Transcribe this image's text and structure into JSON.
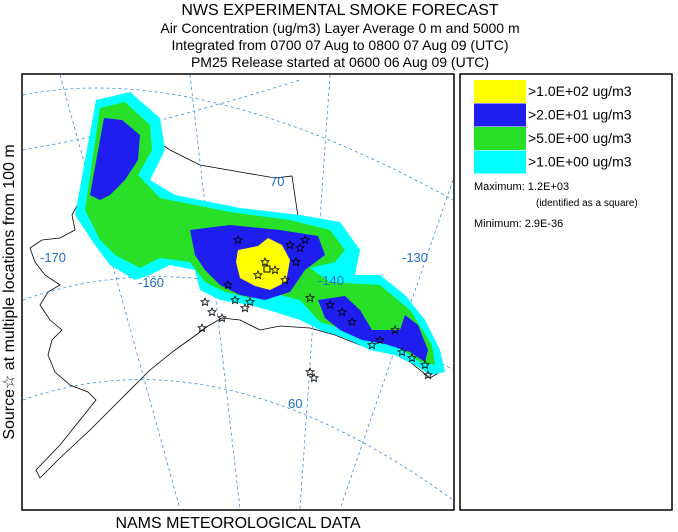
{
  "header": {
    "title": "NWS EXPERIMENTAL SMOKE FORECAST",
    "lines": [
      "Air Concentration (ug/m3) Layer Average    0 m and  5000 m",
      "Integrated from 0700 07 Aug to 0800 07 Aug 09 (UTC)",
      "PM25 Release started at 0600 06 Aug 09 (UTC)"
    ]
  },
  "side_label": "Source☆ at multiple locations from   100 m",
  "footer": "NAMS METEOROLOGICAL DATA",
  "map": {
    "labels": [
      "70",
      "-170",
      "-160",
      "-140",
      "-130",
      "60"
    ]
  },
  "legend": {
    "items": [
      {
        "label": ">1.0E+02 ug/m3",
        "color": "#ffff00"
      },
      {
        "label": ">2.0E+01 ug/m3",
        "color": "#1e1ef0"
      },
      {
        "label": ">5.0E+00 ug/m3",
        "color": "#28e028"
      },
      {
        "label": ">1.0E+00 ug/m3",
        "color": "#00ffff"
      }
    ],
    "maximum": "Maximum: 1.2E+03",
    "maximum_note": "(identified as a square)",
    "minimum": "Minimum: 2.9E-36"
  }
}
